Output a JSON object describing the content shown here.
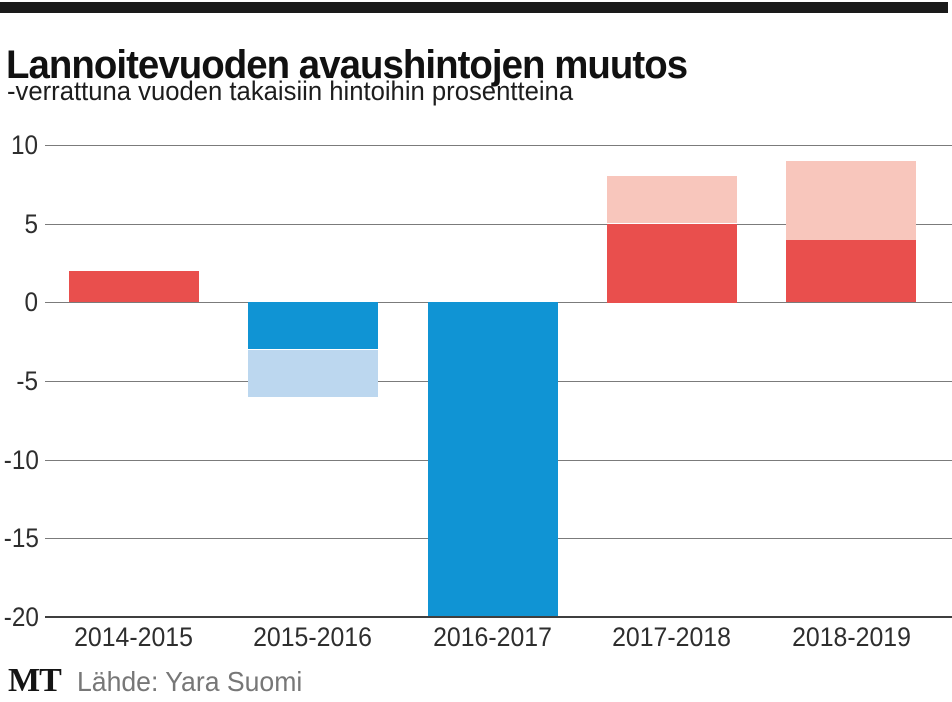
{
  "header": {
    "title": "Lannoitevuoden avaushintojen muutos",
    "subtitle": "-verrattuna vuoden takaisiin hintoihin prosentteina"
  },
  "footer": {
    "logo": "MT",
    "source": "Lähde: Yara Suomi"
  },
  "colors": {
    "positive_dark": "#E94F4D",
    "positive_light": "#F8C6BC",
    "negative_dark": "#1094D4",
    "negative_light": "#BCD7EF",
    "gridline": "#7b7b7b",
    "axis": "#3f3f3f",
    "masthead": "#1a1a1a",
    "source_text": "#777777"
  },
  "chart_data": {
    "type": "bar",
    "stacked": true,
    "title": "Lannoitevuoden avaushintojen muutos",
    "subtitle": "-verrattuna vuoden takaisiin hintoihin prosentteina",
    "xlabel": "",
    "ylabel": "",
    "ylim": [
      -20,
      10
    ],
    "yticks": [
      10,
      5,
      0,
      -5,
      -10,
      -15,
      -20
    ],
    "grid": true,
    "legend": "none",
    "categories": [
      "2014-2015",
      "2015-2016",
      "2016-2017",
      "2017-2018",
      "2018-2019"
    ],
    "totals": [
      2,
      -6,
      -20,
      8,
      9
    ],
    "bars": [
      {
        "category": "2014-2015",
        "segments": [
          {
            "value": 2,
            "color": "#E94F4D"
          }
        ]
      },
      {
        "category": "2015-2016",
        "segments": [
          {
            "value": -3,
            "color": "#1094D4"
          },
          {
            "value": -3,
            "color": "#BCD7EF"
          }
        ]
      },
      {
        "category": "2016-2017",
        "segments": [
          {
            "value": -20,
            "color": "#1094D4"
          }
        ]
      },
      {
        "category": "2017-2018",
        "segments": [
          {
            "value": 5,
            "color": "#E94F4D"
          },
          {
            "value": 3,
            "color": "#F8C6BC"
          }
        ]
      },
      {
        "category": "2018-2019",
        "segments": [
          {
            "value": 4,
            "color": "#E94F4D"
          },
          {
            "value": 5,
            "color": "#F8C6BC"
          }
        ]
      }
    ]
  }
}
